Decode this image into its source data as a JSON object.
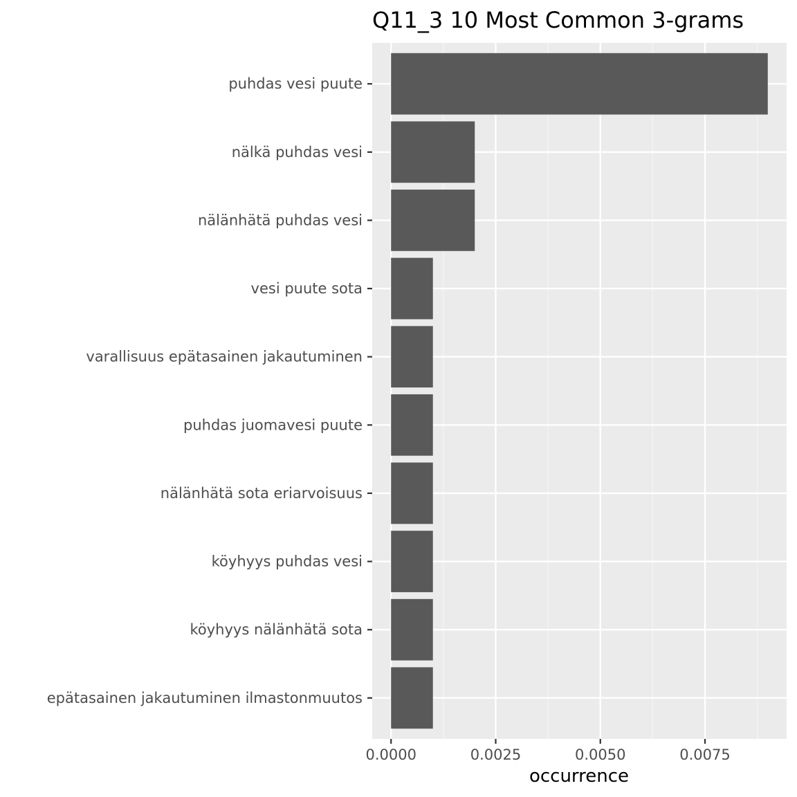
{
  "chart_data": {
    "type": "bar",
    "orientation": "horizontal",
    "title": "Q11_3 10 Most Common 3-grams",
    "xlabel": "occurrence",
    "ylabel": "",
    "categories": [
      "puhdas vesi puute",
      "nälkä puhdas vesi",
      "nälänhätä puhdas vesi",
      "vesi puute sota",
      "varallisuus epätasainen jakautuminen",
      "puhdas juomavesi puute",
      "nälänhätä sota eriarvoisuus",
      "köyhyys puhdas vesi",
      "köyhyys nälänhätä sota",
      "epätasainen jakautuminen ilmastonmuutos"
    ],
    "values": [
      0.009,
      0.002,
      0.002,
      0.001,
      0.001,
      0.001,
      0.001,
      0.001,
      0.001,
      0.001
    ],
    "xlim": [
      -0.00045,
      0.00945
    ],
    "xticks": [
      0,
      0.0025,
      0.005,
      0.0075
    ],
    "xtick_labels": [
      "0.0000",
      "0.0025",
      "0.0050",
      "0.0075"
    ],
    "grid": true,
    "legend": "none",
    "colors": {
      "bar": "#595959",
      "panel": "#ebebeb",
      "grid_major": "#ffffff",
      "grid_minor": "#f5f5f5",
      "tick_text": "#4d4d4d",
      "title_text": "#000000"
    }
  }
}
